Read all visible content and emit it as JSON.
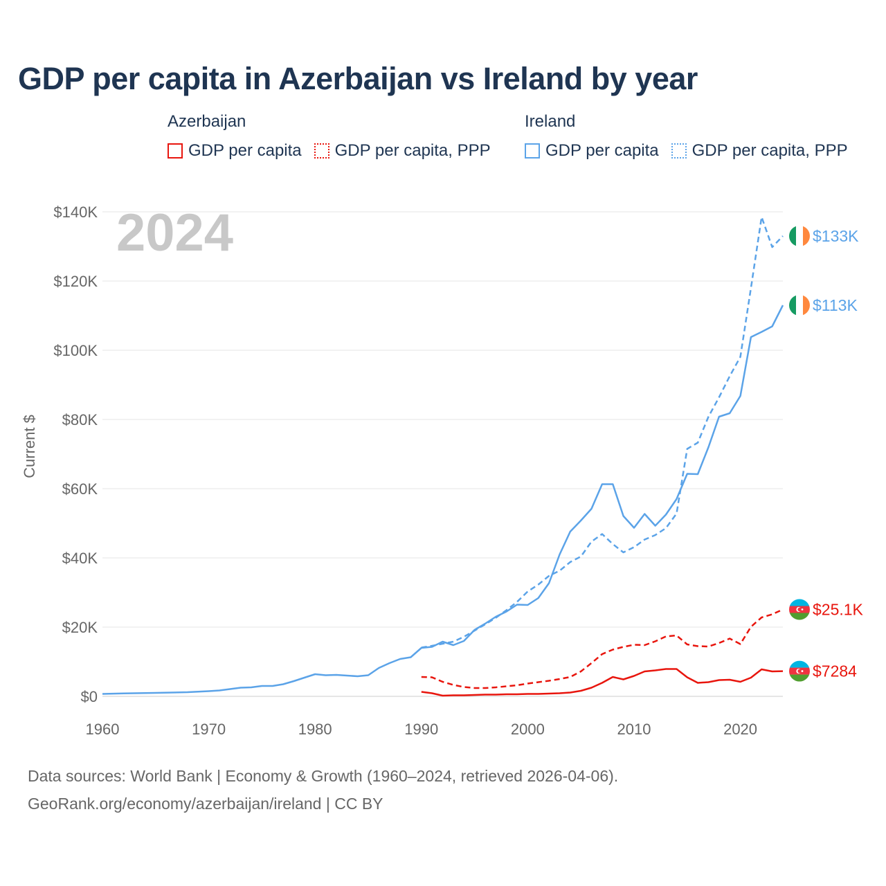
{
  "title": "GDP per capita in Azerbaijan vs Ireland by year",
  "legend": {
    "groups": [
      {
        "country": "Azerbaijan",
        "color": "#e8150d",
        "items": [
          {
            "label": "GDP per capita",
            "style": "solid"
          },
          {
            "label": "GDP per capita, PPP",
            "style": "dotted"
          }
        ]
      },
      {
        "country": "Ireland",
        "color": "#5ba3e8",
        "items": [
          {
            "label": "GDP per capita",
            "style": "solid"
          },
          {
            "label": "GDP per capita, PPP",
            "style": "dotted"
          }
        ]
      }
    ]
  },
  "footer": {
    "line1": "Data sources: World Bank | Economy & Growth (1960–2024, retrieved 2026-04-06).",
    "line2": "GeoRank.org/economy/azerbaijan/ireland | CC BY"
  },
  "chart_data": {
    "type": "line",
    "title": "GDP per capita in Azerbaijan vs Ireland by year",
    "year_label": "2024",
    "xlabel": "",
    "ylabel": "Current $",
    "xlim": [
      1960,
      2024
    ],
    "ylim": [
      0,
      140000
    ],
    "x_ticks": [
      1960,
      1970,
      1980,
      1990,
      2000,
      2010,
      2020
    ],
    "x_tick_labels": [
      "1960",
      "1970",
      "1980",
      "1990",
      "2000",
      "2010",
      "2020"
    ],
    "y_ticks": [
      0,
      20000,
      40000,
      60000,
      80000,
      100000,
      120000,
      140000
    ],
    "y_tick_labels": [
      "$0",
      "$20K",
      "$40K",
      "$60K",
      "$80K",
      "$100K",
      "$120K",
      "$140K"
    ],
    "grid": true,
    "series": [
      {
        "name": "Ireland GDP per capita",
        "country": "Ireland",
        "color": "#5ba3e8",
        "style": "solid",
        "end_label": "$113K",
        "flag": "ireland-flag-icon",
        "points": [
          [
            1960,
            700
          ],
          [
            1962,
            850
          ],
          [
            1965,
            1000
          ],
          [
            1968,
            1200
          ],
          [
            1970,
            1500
          ],
          [
            1971,
            1700
          ],
          [
            1972,
            2100
          ],
          [
            1973,
            2500
          ],
          [
            1974,
            2600
          ],
          [
            1975,
            3000
          ],
          [
            1976,
            3000
          ],
          [
            1977,
            3500
          ],
          [
            1978,
            4400
          ],
          [
            1979,
            5400
          ],
          [
            1980,
            6400
          ],
          [
            1981,
            6100
          ],
          [
            1982,
            6200
          ],
          [
            1983,
            6000
          ],
          [
            1984,
            5800
          ],
          [
            1985,
            6100
          ],
          [
            1986,
            8200
          ],
          [
            1987,
            9600
          ],
          [
            1988,
            10800
          ],
          [
            1989,
            11300
          ],
          [
            1990,
            14000
          ],
          [
            1991,
            14300
          ],
          [
            1992,
            15800
          ],
          [
            1993,
            14800
          ],
          [
            1994,
            16000
          ],
          [
            1995,
            19200
          ],
          [
            1996,
            21000
          ],
          [
            1997,
            23000
          ],
          [
            1998,
            24500
          ],
          [
            1999,
            26500
          ],
          [
            2000,
            26400
          ],
          [
            2001,
            28400
          ],
          [
            2002,
            32700
          ],
          [
            2003,
            41000
          ],
          [
            2004,
            47600
          ],
          [
            2005,
            50800
          ],
          [
            2006,
            54200
          ],
          [
            2007,
            61300
          ],
          [
            2008,
            61300
          ],
          [
            2009,
            52100
          ],
          [
            2010,
            48700
          ],
          [
            2011,
            52700
          ],
          [
            2012,
            49300
          ],
          [
            2013,
            52500
          ],
          [
            2014,
            57000
          ],
          [
            2015,
            64300
          ],
          [
            2016,
            64200
          ],
          [
            2017,
            72000
          ],
          [
            2018,
            80800
          ],
          [
            2019,
            81800
          ],
          [
            2020,
            86800
          ],
          [
            2021,
            103800
          ],
          [
            2022,
            105300
          ],
          [
            2023,
            106900
          ],
          [
            2024,
            113000
          ]
        ]
      },
      {
        "name": "Ireland GDP per capita, PPP",
        "country": "Ireland",
        "color": "#5ba3e8",
        "style": "dashed",
        "end_label": "$133K",
        "flag": "ireland-flag-icon",
        "points": [
          [
            1990,
            14100
          ],
          [
            1991,
            14600
          ],
          [
            1992,
            15200
          ],
          [
            1993,
            15800
          ],
          [
            1994,
            17200
          ],
          [
            1995,
            19000
          ],
          [
            1996,
            20800
          ],
          [
            1997,
            22700
          ],
          [
            1998,
            24900
          ],
          [
            1999,
            27300
          ],
          [
            2000,
            30300
          ],
          [
            2001,
            32300
          ],
          [
            2002,
            34800
          ],
          [
            2003,
            36300
          ],
          [
            2004,
            38800
          ],
          [
            2005,
            40400
          ],
          [
            2006,
            44700
          ],
          [
            2007,
            46900
          ],
          [
            2008,
            44000
          ],
          [
            2009,
            41600
          ],
          [
            2010,
            43100
          ],
          [
            2011,
            45300
          ],
          [
            2012,
            46600
          ],
          [
            2013,
            48600
          ],
          [
            2014,
            52800
          ],
          [
            2015,
            71500
          ],
          [
            2016,
            73300
          ],
          [
            2017,
            80800
          ],
          [
            2018,
            86400
          ],
          [
            2019,
            92500
          ],
          [
            2020,
            98100
          ],
          [
            2021,
            118000
          ],
          [
            2022,
            138500
          ],
          [
            2023,
            129800
          ],
          [
            2024,
            133000
          ]
        ]
      },
      {
        "name": "Azerbaijan GDP per capita",
        "country": "Azerbaijan",
        "color": "#e8150d",
        "style": "solid",
        "end_label": "$7284",
        "flag": "azerbaijan-flag-icon",
        "points": [
          [
            1990,
            1300
          ],
          [
            1991,
            900
          ],
          [
            1992,
            200
          ],
          [
            1993,
            300
          ],
          [
            1994,
            300
          ],
          [
            1995,
            400
          ],
          [
            1996,
            500
          ],
          [
            1997,
            500
          ],
          [
            1998,
            600
          ],
          [
            1999,
            600
          ],
          [
            2000,
            700
          ],
          [
            2001,
            700
          ],
          [
            2002,
            800
          ],
          [
            2003,
            900
          ],
          [
            2004,
            1100
          ],
          [
            2005,
            1600
          ],
          [
            2006,
            2500
          ],
          [
            2007,
            3900
          ],
          [
            2008,
            5600
          ],
          [
            2009,
            4900
          ],
          [
            2010,
            5900
          ],
          [
            2011,
            7200
          ],
          [
            2012,
            7500
          ],
          [
            2013,
            7900
          ],
          [
            2014,
            7900
          ],
          [
            2015,
            5500
          ],
          [
            2016,
            3900
          ],
          [
            2017,
            4100
          ],
          [
            2018,
            4700
          ],
          [
            2019,
            4800
          ],
          [
            2020,
            4200
          ],
          [
            2021,
            5400
          ],
          [
            2022,
            7800
          ],
          [
            2023,
            7200
          ],
          [
            2024,
            7284
          ]
        ]
      },
      {
        "name": "Azerbaijan GDP per capita, PPP",
        "country": "Azerbaijan",
        "color": "#e8150d",
        "style": "dashed",
        "end_label": "$25.1K",
        "flag": "azerbaijan-flag-icon",
        "points": [
          [
            1990,
            5600
          ],
          [
            1991,
            5500
          ],
          [
            1992,
            4200
          ],
          [
            1993,
            3300
          ],
          [
            1994,
            2700
          ],
          [
            1995,
            2400
          ],
          [
            1996,
            2400
          ],
          [
            1997,
            2600
          ],
          [
            1998,
            2900
          ],
          [
            1999,
            3200
          ],
          [
            2000,
            3700
          ],
          [
            2001,
            4100
          ],
          [
            2002,
            4500
          ],
          [
            2003,
            5000
          ],
          [
            2004,
            5600
          ],
          [
            2005,
            7200
          ],
          [
            2006,
            9600
          ],
          [
            2007,
            12200
          ],
          [
            2008,
            13500
          ],
          [
            2009,
            14300
          ],
          [
            2010,
            14900
          ],
          [
            2011,
            14800
          ],
          [
            2012,
            15900
          ],
          [
            2013,
            17300
          ],
          [
            2014,
            17600
          ],
          [
            2015,
            15000
          ],
          [
            2016,
            14500
          ],
          [
            2017,
            14400
          ],
          [
            2018,
            15400
          ],
          [
            2019,
            16700
          ],
          [
            2020,
            15100
          ],
          [
            2021,
            20100
          ],
          [
            2022,
            22800
          ],
          [
            2023,
            23700
          ],
          [
            2024,
            25100
          ]
        ]
      }
    ]
  }
}
